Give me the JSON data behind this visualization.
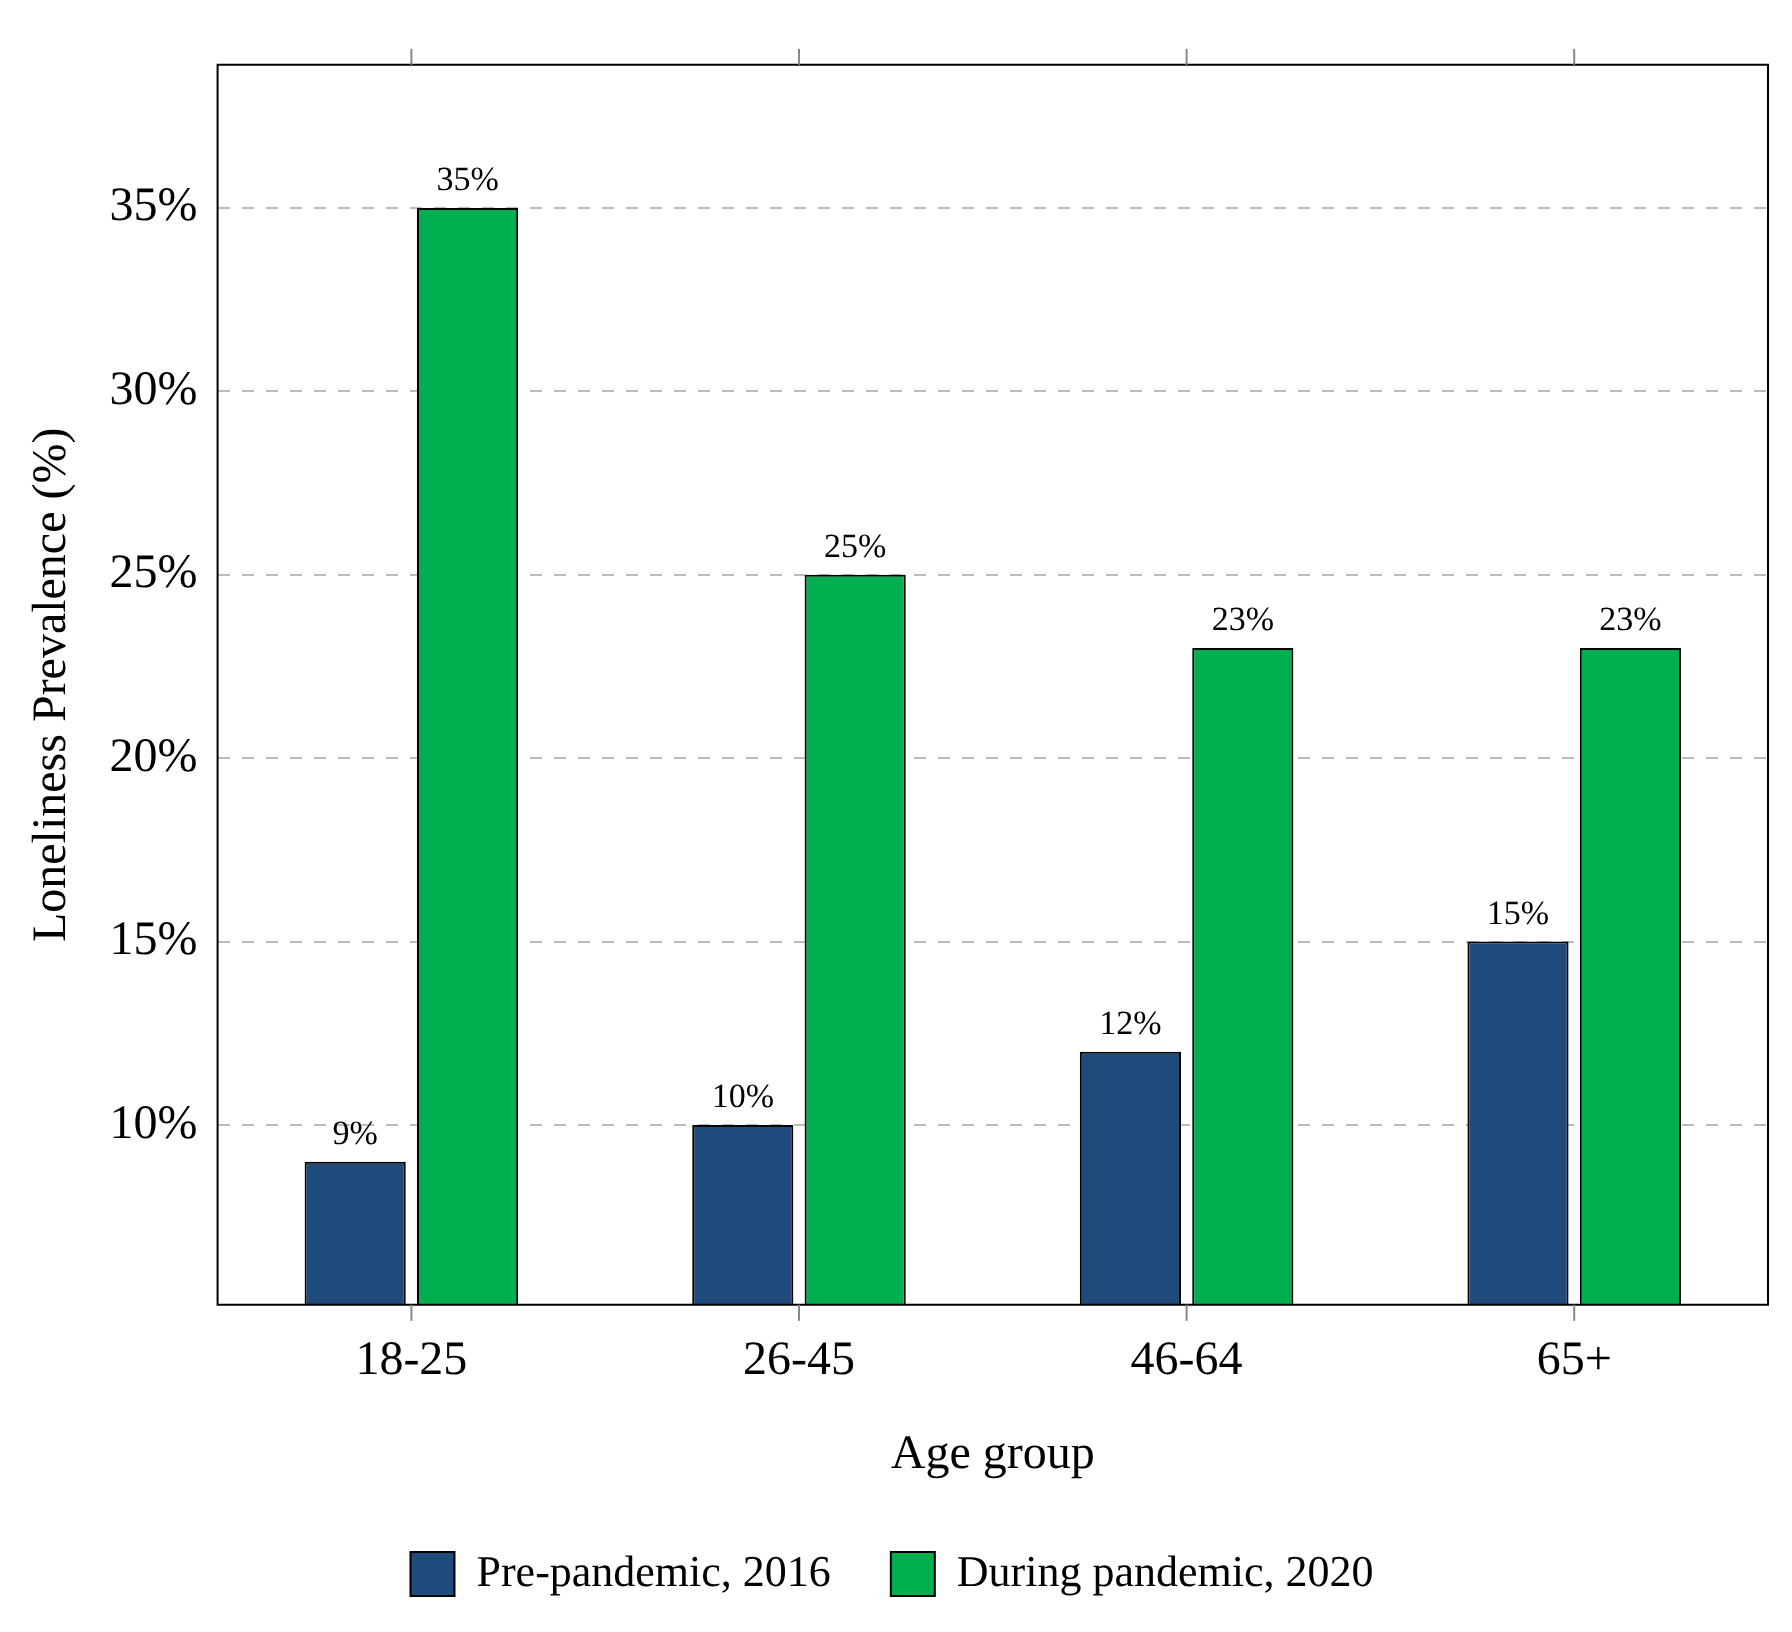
{
  "chart_data": {
    "type": "bar",
    "xlabel": "Age group",
    "ylabel": "Loneliness Prevalence (%)",
    "categories": [
      "18-25",
      "26-45",
      "46-64",
      "65+"
    ],
    "series": [
      {
        "name": "Pre-pandemic, 2016",
        "color": "#1f4a7c",
        "values": [
          9,
          10,
          12,
          15
        ],
        "value_labels": [
          "9%",
          "10%",
          "12%",
          "15%"
        ]
      },
      {
        "name": "During pandemic, 2020",
        "color": "#00b050",
        "values": [
          35,
          25,
          23,
          23
        ],
        "value_labels": [
          "35%",
          "25%",
          "23%",
          "23%"
        ]
      }
    ],
    "ylim": [
      5.1,
      38.9
    ],
    "yticks": [
      {
        "value": 10,
        "label": "10%"
      },
      {
        "value": 15,
        "label": "15%"
      },
      {
        "value": 20,
        "label": "20%"
      },
      {
        "value": 25,
        "label": "25%"
      },
      {
        "value": 30,
        "label": "30%"
      },
      {
        "value": 35,
        "label": "35%"
      }
    ],
    "grid": "y",
    "legend": "bottom"
  }
}
